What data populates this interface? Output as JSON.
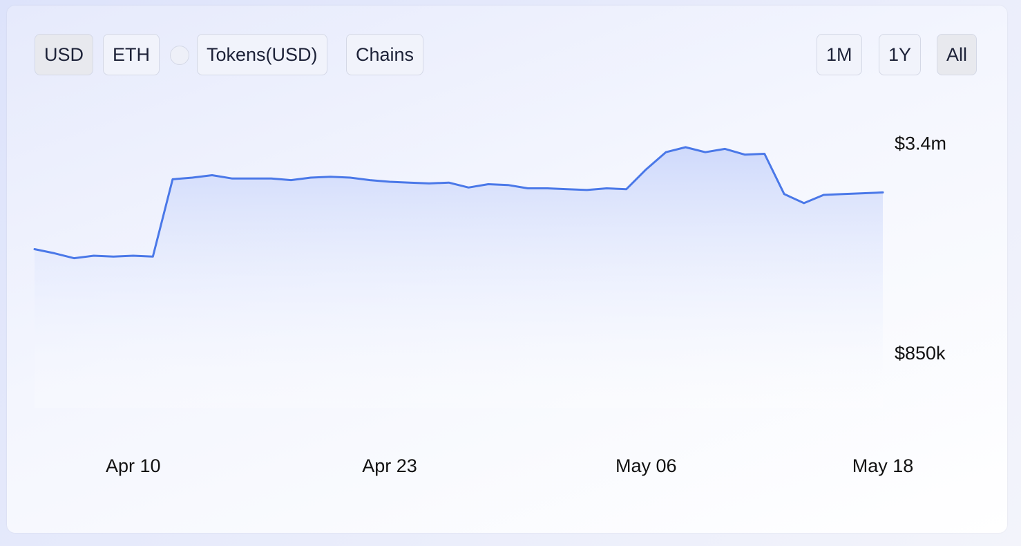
{
  "controls": {
    "left": [
      "USD",
      "ETH",
      "Tokens(USD)",
      "Chains"
    ],
    "right": [
      "1M",
      "1Y",
      "All"
    ]
  },
  "chart_data": {
    "type": "area",
    "color": "#4a78e8",
    "categories": [
      null,
      null,
      null,
      null,
      null,
      "Apr 10",
      null,
      null,
      null,
      null,
      null,
      null,
      null,
      null,
      null,
      null,
      null,
      null,
      "Apr 23",
      null,
      null,
      null,
      null,
      null,
      null,
      null,
      null,
      null,
      null,
      null,
      null,
      "May 06",
      null,
      null,
      null,
      null,
      null,
      null,
      null,
      null,
      null,
      null,
      null,
      "May 18"
    ],
    "values": [
      2130000,
      2080000,
      2020000,
      2050000,
      2040000,
      2050000,
      2040000,
      2980000,
      3000000,
      3030000,
      2990000,
      2990000,
      2990000,
      2970000,
      3000000,
      3010000,
      3000000,
      2970000,
      2950000,
      2940000,
      2930000,
      2940000,
      2880000,
      2920000,
      2910000,
      2870000,
      2870000,
      2860000,
      2850000,
      2870000,
      2860000,
      3100000,
      3310000,
      3370000,
      3310000,
      3350000,
      3280000,
      3290000,
      2800000,
      2690000,
      2790000,
      2800000,
      2810000,
      2820000
    ],
    "ylim": [
      200000,
      3900000
    ],
    "yticks": [
      {
        "value": 850000,
        "label": "$850k"
      },
      {
        "value": 3400000,
        "label": "$3.4m"
      }
    ],
    "grid": false
  }
}
